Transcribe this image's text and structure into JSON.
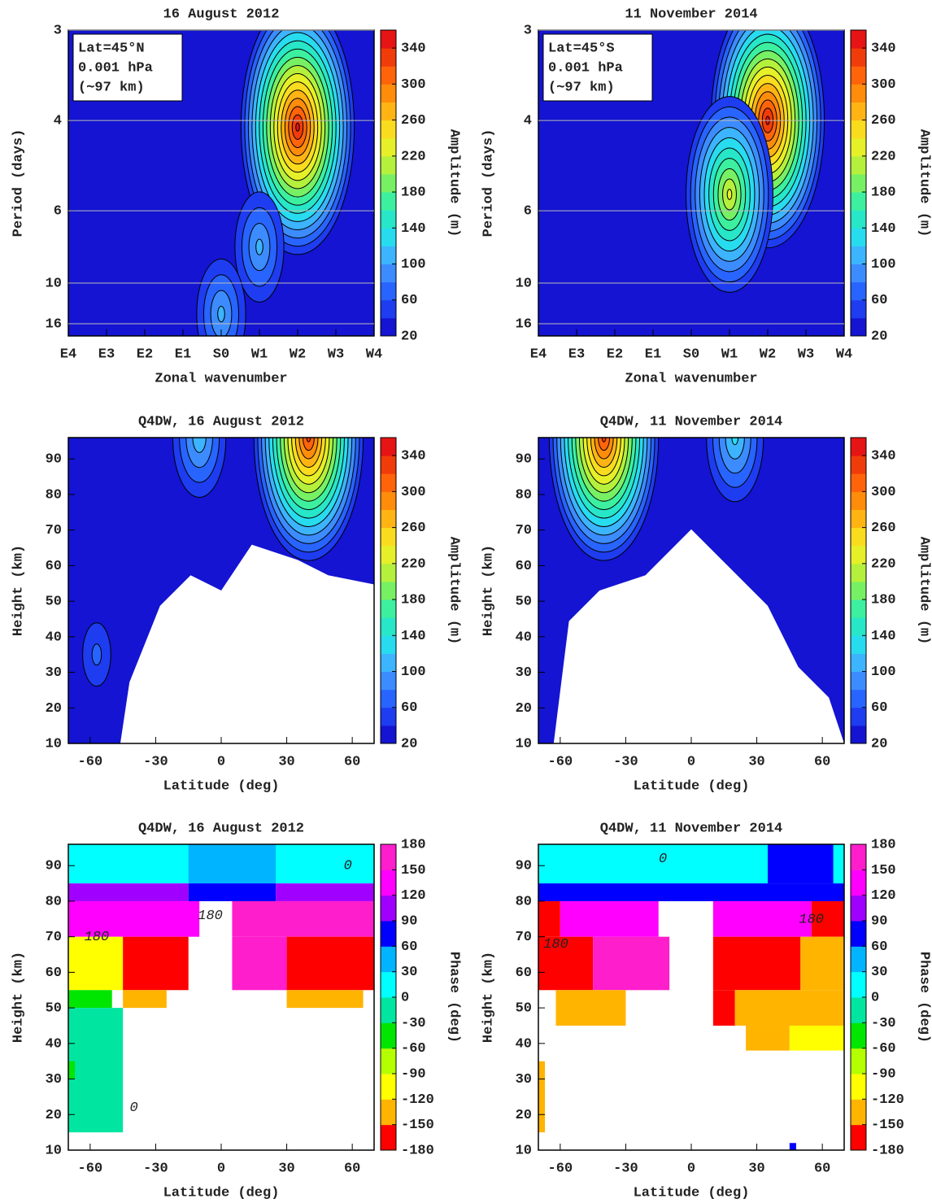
{
  "chart_data": [
    {
      "type": "contour",
      "title": "16 August 2012",
      "xlabel": "Zonal wavenumber",
      "ylabel": "Period (days)",
      "xlim": [
        -4,
        4
      ],
      "xticks": [
        {
          "value": -4,
          "label": "E4"
        },
        {
          "value": -3,
          "label": "E3"
        },
        {
          "value": -2,
          "label": "E2"
        },
        {
          "value": -1,
          "label": "E1"
        },
        {
          "value": 0,
          "label": "S0"
        },
        {
          "value": 1,
          "label": "W1"
        },
        {
          "value": 2,
          "label": "W2"
        },
        {
          "value": 3,
          "label": "W3"
        },
        {
          "value": 4,
          "label": "W4"
        }
      ],
      "ylim": [
        3,
        19.5
      ],
      "yticks": [
        3,
        4,
        6,
        10,
        16
      ],
      "yscale": "reciprocal",
      "grid": true,
      "annotation": [
        "Lat=45°N",
        "0.001 hPa",
        "(∼97 km)"
      ],
      "colorbar": {
        "label": "Amplitude (m)",
        "lim": [
          20,
          360
        ],
        "ticks": [
          20,
          60,
          100,
          140,
          180,
          220,
          260,
          300,
          340
        ],
        "colors": [
          "#1414d2",
          "#1e3cf0",
          "#2864ff",
          "#3c8cff",
          "#3cb4ff",
          "#28dcf0",
          "#28e6c8",
          "#3cf0a0",
          "#78f064",
          "#b4f03c",
          "#e6f028",
          "#fadc1e",
          "#ffb414",
          "#ff8c0a",
          "#ff640a",
          "#f03c0a",
          "#e61414"
        ]
      },
      "peaks": [
        {
          "x": 2,
          "y": 4.1,
          "value": 350
        },
        {
          "x": 1,
          "y": 7.5,
          "value": 110
        },
        {
          "x": 0,
          "y": 14,
          "value": 110
        }
      ]
    },
    {
      "type": "contour",
      "title": "11 November 2014",
      "xlabel": "Zonal wavenumber",
      "ylabel": "Period (days)",
      "xlim": [
        -4,
        4
      ],
      "xticks": [
        {
          "value": -4,
          "label": "E4"
        },
        {
          "value": -3,
          "label": "E3"
        },
        {
          "value": -2,
          "label": "E2"
        },
        {
          "value": -1,
          "label": "E1"
        },
        {
          "value": 0,
          "label": "S0"
        },
        {
          "value": 1,
          "label": "W1"
        },
        {
          "value": 2,
          "label": "W2"
        },
        {
          "value": 3,
          "label": "W3"
        },
        {
          "value": 4,
          "label": "W4"
        }
      ],
      "ylim": [
        3,
        19.5
      ],
      "yticks": [
        3,
        4,
        6,
        10,
        16
      ],
      "yscale": "reciprocal",
      "grid": true,
      "annotation": [
        "Lat=45°S",
        "0.001 hPa",
        "(∼97 km)"
      ],
      "colorbar": {
        "label": "Amplitude (m)",
        "lim": [
          20,
          360
        ],
        "ticks": [
          20,
          60,
          100,
          140,
          180,
          220,
          260,
          300,
          340
        ],
        "colors": [
          "#1414d2",
          "#1e3cf0",
          "#2864ff",
          "#3c8cff",
          "#3cb4ff",
          "#28dcf0",
          "#28e6c8",
          "#3cf0a0",
          "#78f064",
          "#b4f03c",
          "#e6f028",
          "#fadc1e",
          "#ffb414",
          "#ff8c0a",
          "#ff640a",
          "#f03c0a",
          "#e61414"
        ]
      },
      "peaks": [
        {
          "x": 2,
          "y": 4,
          "value": 350
        },
        {
          "x": 1,
          "y": 5.5,
          "value": 230
        }
      ]
    },
    {
      "type": "contour",
      "title": "Q4DW, 16 August 2012",
      "xlabel": "Latitude (deg)",
      "ylabel": "Height (km)",
      "xlim": [
        -70,
        70
      ],
      "xticks": [
        -60,
        -30,
        0,
        30,
        60
      ],
      "ylim": [
        10,
        96
      ],
      "yticks": [
        10,
        20,
        30,
        40,
        50,
        60,
        70,
        80,
        90
      ],
      "yscale": "linear",
      "grid": false,
      "colorbar": {
        "label": "Amplitude (m)",
        "lim": [
          20,
          360
        ],
        "ticks": [
          20,
          60,
          100,
          140,
          180,
          220,
          260,
          300,
          340
        ],
        "colors": [
          "#1414d2",
          "#1e3cf0",
          "#2864ff",
          "#3c8cff",
          "#3cb4ff",
          "#28dcf0",
          "#28e6c8",
          "#3cf0a0",
          "#78f064",
          "#b4f03c",
          "#e6f028",
          "#fadc1e",
          "#ffb414",
          "#ff8c0a",
          "#ff640a",
          "#f03c0a",
          "#e61414"
        ]
      },
      "peaks": [
        {
          "x": 40,
          "y": 96,
          "value": 330
        },
        {
          "x": -10,
          "y": 96,
          "value": 120
        },
        {
          "x": -57,
          "y": 35,
          "value": 70
        }
      ]
    },
    {
      "type": "contour",
      "title": "Q4DW, 11 November 2014",
      "xlabel": "Latitude (deg)",
      "ylabel": "Height (km)",
      "xlim": [
        -70,
        70
      ],
      "xticks": [
        -60,
        -30,
        0,
        30,
        60
      ],
      "ylim": [
        10,
        96
      ],
      "yticks": [
        10,
        20,
        30,
        40,
        50,
        60,
        70,
        80,
        90
      ],
      "yscale": "linear",
      "grid": false,
      "colorbar": {
        "label": "Amplitude (m)",
        "lim": [
          20,
          360
        ],
        "ticks": [
          20,
          60,
          100,
          140,
          180,
          220,
          260,
          300,
          340
        ],
        "colors": [
          "#1414d2",
          "#1e3cf0",
          "#2864ff",
          "#3c8cff",
          "#3cb4ff",
          "#28dcf0",
          "#28e6c8",
          "#3cf0a0",
          "#78f064",
          "#b4f03c",
          "#e6f028",
          "#fadc1e",
          "#ffb414",
          "#ff8c0a",
          "#ff640a",
          "#f03c0a",
          "#e61414"
        ]
      },
      "peaks": [
        {
          "x": -40,
          "y": 96,
          "value": 330
        },
        {
          "x": 20,
          "y": 96,
          "value": 130
        }
      ]
    },
    {
      "type": "pixel",
      "title": "Q4DW, 16 August 2012",
      "xlabel": "Latitude (deg)",
      "ylabel": "Height (km)",
      "xlim": [
        -70,
        70
      ],
      "xticks": [
        -60,
        -30,
        0,
        30,
        60
      ],
      "ylim": [
        10,
        96
      ],
      "yticks": [
        10,
        20,
        30,
        40,
        50,
        60,
        70,
        80,
        90
      ],
      "yscale": "linear",
      "grid": false,
      "colorbar": {
        "label": "Phase (deg)",
        "lim": [
          -180,
          180
        ],
        "ticks": [
          -180,
          -150,
          -120,
          -90,
          -60,
          -30,
          0,
          30,
          60,
          90,
          120,
          150,
          180
        ],
        "colors": [
          "#ff0000",
          "#ffb400",
          "#ffff00",
          "#b4ff00",
          "#00e600",
          "#00e6a0",
          "#00ffff",
          "#00b4ff",
          "#0000ff",
          "#a000ff",
          "#ff00ff",
          "#ff1ecc"
        ]
      },
      "cells": [
        {
          "x": [
            -70,
            70
          ],
          "y": [
            85,
            96
          ],
          "value": 15
        },
        {
          "x": [
            -15,
            25
          ],
          "y": [
            85,
            96
          ],
          "value": 40
        },
        {
          "x": [
            -70,
            -15
          ],
          "y": [
            80,
            85
          ],
          "value": 100
        },
        {
          "x": [
            -15,
            25
          ],
          "y": [
            80,
            85
          ],
          "value": 75
        },
        {
          "x": [
            25,
            70
          ],
          "y": [
            80,
            85
          ],
          "value": 100
        },
        {
          "x": [
            -70,
            -10
          ],
          "y": [
            70,
            80
          ],
          "value": 140
        },
        {
          "x": [
            5,
            70
          ],
          "y": [
            70,
            80
          ],
          "value": 160
        },
        {
          "x": [
            -70,
            -45
          ],
          "y": [
            55,
            70
          ],
          "value": -100
        },
        {
          "x": [
            -45,
            -15
          ],
          "y": [
            55,
            70
          ],
          "value": -165
        },
        {
          "x": [
            5,
            30
          ],
          "y": [
            55,
            70
          ],
          "value": 160
        },
        {
          "x": [
            30,
            70
          ],
          "y": [
            55,
            70
          ],
          "value": -165
        },
        {
          "x": [
            -70,
            -50
          ],
          "y": [
            50,
            55
          ],
          "value": -45
        },
        {
          "x": [
            -45,
            -25
          ],
          "y": [
            50,
            55
          ],
          "value": -135
        },
        {
          "x": [
            30,
            65
          ],
          "y": [
            50,
            55
          ],
          "value": -135
        },
        {
          "x": [
            -70,
            -45
          ],
          "y": [
            15,
            50
          ],
          "value": -15
        },
        {
          "x": [
            -70,
            -67
          ],
          "y": [
            30,
            35
          ],
          "value": -50
        }
      ],
      "labels": [
        {
          "text": "180",
          "x": -57,
          "y": 70
        },
        {
          "text": "180",
          "x": -5,
          "y": 76
        },
        {
          "text": "0",
          "x": 58,
          "y": 90
        },
        {
          "text": "0",
          "x": -40,
          "y": 22
        }
      ]
    },
    {
      "type": "pixel",
      "title": "Q4DW, 11 November 2014",
      "xlabel": "Latitude (deg)",
      "ylabel": "Height (km)",
      "xlim": [
        -70,
        70
      ],
      "xticks": [
        -60,
        -30,
        0,
        30,
        60
      ],
      "ylim": [
        10,
        96
      ],
      "yticks": [
        10,
        20,
        30,
        40,
        50,
        60,
        70,
        80,
        90
      ],
      "yscale": "linear",
      "grid": false,
      "colorbar": {
        "label": "Phase (deg)",
        "lim": [
          -180,
          180
        ],
        "ticks": [
          -180,
          -150,
          -120,
          -90,
          -60,
          -30,
          0,
          30,
          60,
          90,
          120,
          150,
          180
        ],
        "colors": [
          "#ff0000",
          "#ffb400",
          "#ffff00",
          "#b4ff00",
          "#00e600",
          "#00e6a0",
          "#00ffff",
          "#00b4ff",
          "#0000ff",
          "#a000ff",
          "#ff00ff",
          "#ff1ecc"
        ]
      },
      "cells": [
        {
          "x": [
            -70,
            70
          ],
          "y": [
            85,
            96
          ],
          "value": 15
        },
        {
          "x": [
            35,
            65
          ],
          "y": [
            85,
            96
          ],
          "value": 75
        },
        {
          "x": [
            -70,
            70
          ],
          "y": [
            80,
            85
          ],
          "value": 75
        },
        {
          "x": [
            -70,
            -60
          ],
          "y": [
            70,
            80
          ],
          "value": -165
        },
        {
          "x": [
            -60,
            -15
          ],
          "y": [
            70,
            80
          ],
          "value": 130
        },
        {
          "x": [
            10,
            55
          ],
          "y": [
            70,
            80
          ],
          "value": 140
        },
        {
          "x": [
            55,
            70
          ],
          "y": [
            70,
            80
          ],
          "value": -165
        },
        {
          "x": [
            -70,
            -45
          ],
          "y": [
            55,
            70
          ],
          "value": -165
        },
        {
          "x": [
            -45,
            -10
          ],
          "y": [
            55,
            70
          ],
          "value": 160
        },
        {
          "x": [
            10,
            50
          ],
          "y": [
            55,
            70
          ],
          "value": -165
        },
        {
          "x": [
            50,
            70
          ],
          "y": [
            55,
            70
          ],
          "value": -135
        },
        {
          "x": [
            -62,
            -30
          ],
          "y": [
            45,
            55
          ],
          "value": -135
        },
        {
          "x": [
            10,
            20
          ],
          "y": [
            45,
            55
          ],
          "value": -165
        },
        {
          "x": [
            20,
            70
          ],
          "y": [
            45,
            55
          ],
          "value": -135
        },
        {
          "x": [
            25,
            45
          ],
          "y": [
            38,
            45
          ],
          "value": -135
        },
        {
          "x": [
            45,
            70
          ],
          "y": [
            38,
            45
          ],
          "value": -100
        },
        {
          "x": [
            -70,
            -67
          ],
          "y": [
            15,
            35
          ],
          "value": -135
        },
        {
          "x": [
            45,
            48
          ],
          "y": [
            10,
            12
          ],
          "value": 75
        }
      ],
      "labels": [
        {
          "text": "0",
          "x": -13,
          "y": 92
        },
        {
          "text": "180",
          "x": -62,
          "y": 68
        },
        {
          "text": "180",
          "x": 55,
          "y": 75
        }
      ]
    }
  ]
}
